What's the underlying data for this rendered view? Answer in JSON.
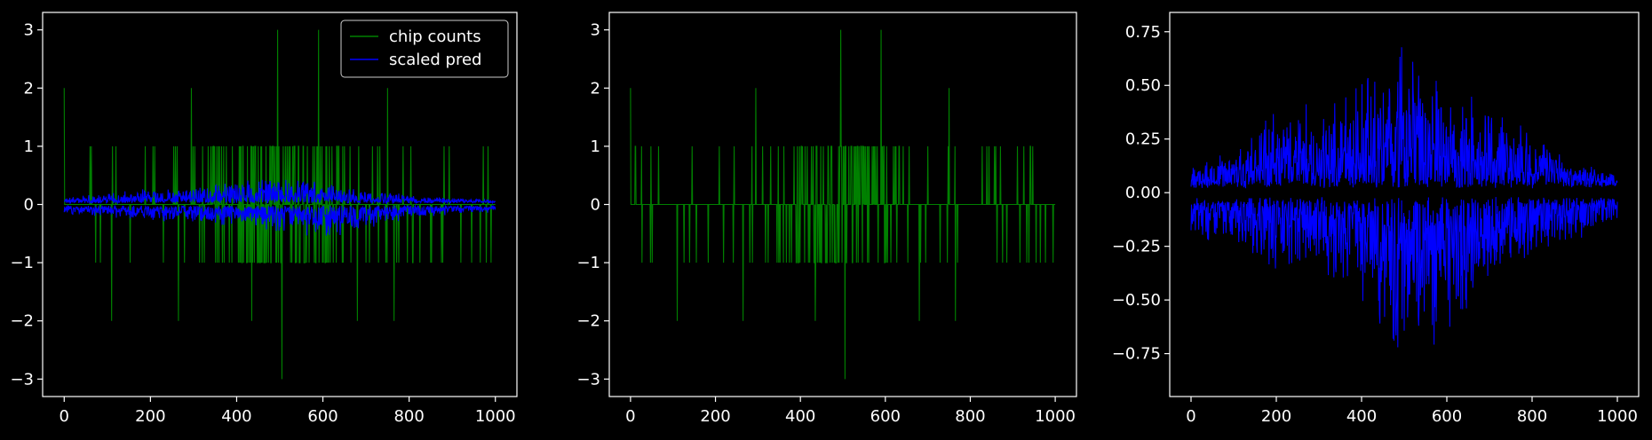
{
  "chart_data": [
    {
      "type": "line",
      "xlim": [
        -50,
        1050
      ],
      "ylim": [
        -3.3,
        3.3
      ],
      "xticks": [
        0,
        200,
        400,
        600,
        800,
        1000
      ],
      "yticks": [
        -3,
        -2,
        -1,
        0,
        1,
        2,
        3
      ],
      "xtick_labels": [
        "0",
        "200",
        "400",
        "600",
        "800",
        "1000"
      ],
      "ytick_labels": [
        "−3",
        "−2",
        "−1",
        "0",
        "1",
        "2",
        "3"
      ],
      "legend": {
        "placement": "top-right",
        "entries": [
          "chip counts",
          "scaled pred"
        ]
      },
      "series": [
        {
          "name": "chip counts",
          "color": "#008000",
          "kind": "spikes",
          "description": "integer counts in [-3,3] over x=0..1000, dense near x=400-600",
          "notable_points": [
            [
              0,
              2
            ],
            [
              110,
              -2
            ],
            [
              265,
              -2
            ],
            [
              295,
              2
            ],
            [
              435,
              -2
            ],
            [
              495,
              3
            ],
            [
              505,
              -3
            ],
            [
              590,
              3
            ],
            [
              680,
              -2
            ],
            [
              750,
              2
            ],
            [
              765,
              -2
            ]
          ]
        },
        {
          "name": "scaled pred",
          "color": "#0000ff",
          "kind": "band",
          "envelope": [
            [
              0,
              0.12,
              -0.14
            ],
            [
              200,
              0.3,
              -0.25
            ],
            [
              400,
              0.4,
              -0.35
            ],
            [
              500,
              0.55,
              -0.5
            ],
            [
              600,
              0.4,
              -0.6
            ],
            [
              800,
              0.18,
              -0.2
            ],
            [
              1000,
              0.08,
              -0.1
            ]
          ]
        }
      ]
    },
    {
      "type": "line",
      "xlim": [
        -50,
        1050
      ],
      "ylim": [
        -3.3,
        3.3
      ],
      "xticks": [
        0,
        200,
        400,
        600,
        800,
        1000
      ],
      "yticks": [
        -3,
        -2,
        -1,
        0,
        1,
        2,
        3
      ],
      "xtick_labels": [
        "0",
        "200",
        "400",
        "600",
        "800",
        "1000"
      ],
      "ytick_labels": [
        "−3",
        "−2",
        "−1",
        "0",
        "1",
        "2",
        "3"
      ],
      "series": [
        {
          "color": "#008000",
          "kind": "spikes",
          "description": "integer counts in [-3,3] over x=0..1000, dense near x=400-600",
          "notable_points": [
            [
              0,
              2
            ],
            [
              110,
              -2
            ],
            [
              265,
              -2
            ],
            [
              295,
              2
            ],
            [
              435,
              -2
            ],
            [
              495,
              3
            ],
            [
              505,
              -3
            ],
            [
              590,
              3
            ],
            [
              680,
              -2
            ],
            [
              750,
              2
            ],
            [
              765,
              -2
            ]
          ]
        }
      ]
    },
    {
      "type": "line",
      "xlim": [
        -50,
        1050
      ],
      "ylim": [
        -0.95,
        0.84
      ],
      "xticks": [
        0,
        200,
        400,
        600,
        800,
        1000
      ],
      "yticks": [
        -0.75,
        -0.5,
        -0.25,
        0.0,
        0.25,
        0.5,
        0.75
      ],
      "xtick_labels": [
        "0",
        "200",
        "400",
        "600",
        "800",
        "1000"
      ],
      "ytick_labels": [
        "−0.75",
        "−0.50",
        "−0.25",
        "0.00",
        "0.25",
        "0.50",
        "0.75"
      ],
      "series": [
        {
          "color": "#0000ff",
          "kind": "band",
          "envelope": [
            [
              0,
              0.14,
              -0.18
            ],
            [
              100,
              0.2,
              -0.25
            ],
            [
              200,
              0.45,
              -0.35
            ],
            [
              300,
              0.45,
              -0.4
            ],
            [
              400,
              0.55,
              -0.45
            ],
            [
              500,
              0.76,
              -0.88
            ],
            [
              600,
              0.5,
              -0.65
            ],
            [
              700,
              0.45,
              -0.45
            ],
            [
              800,
              0.3,
              -0.3
            ],
            [
              900,
              0.15,
              -0.18
            ],
            [
              1000,
              0.1,
              -0.12
            ]
          ]
        }
      ]
    }
  ],
  "colors": {
    "background": "#000000",
    "axes": "#ffffff",
    "counts": "#008000",
    "pred": "#0000ff"
  }
}
